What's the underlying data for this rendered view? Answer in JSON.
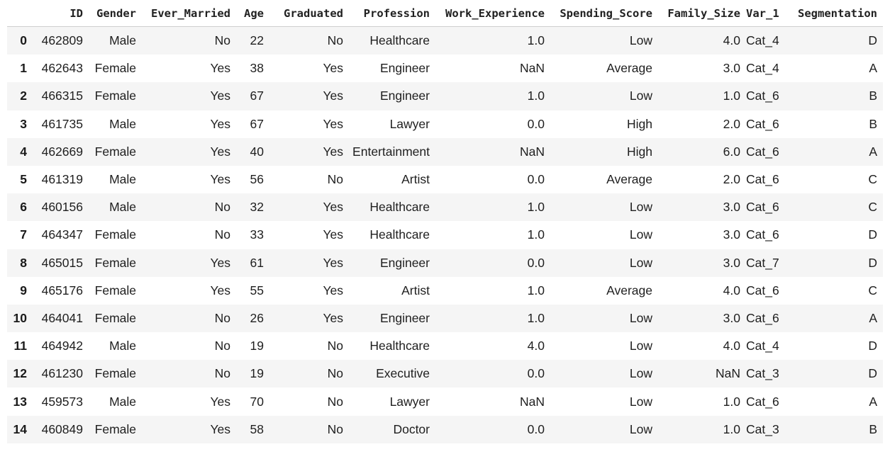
{
  "table": {
    "columns": [
      "",
      "ID",
      "Gender",
      "Ever_Married",
      "Age",
      "Graduated",
      "Profession",
      "Work_Experience",
      "Spending_Score",
      "Family_Size",
      "Var_1",
      "Segmentation"
    ],
    "rows": [
      [
        "0",
        "462809",
        "Male",
        "No",
        "22",
        "No",
        "Healthcare",
        "1.0",
        "Low",
        "4.0",
        "Cat_4",
        "D"
      ],
      [
        "1",
        "462643",
        "Female",
        "Yes",
        "38",
        "Yes",
        "Engineer",
        "NaN",
        "Average",
        "3.0",
        "Cat_4",
        "A"
      ],
      [
        "2",
        "466315",
        "Female",
        "Yes",
        "67",
        "Yes",
        "Engineer",
        "1.0",
        "Low",
        "1.0",
        "Cat_6",
        "B"
      ],
      [
        "3",
        "461735",
        "Male",
        "Yes",
        "67",
        "Yes",
        "Lawyer",
        "0.0",
        "High",
        "2.0",
        "Cat_6",
        "B"
      ],
      [
        "4",
        "462669",
        "Female",
        "Yes",
        "40",
        "Yes",
        "Entertainment",
        "NaN",
        "High",
        "6.0",
        "Cat_6",
        "A"
      ],
      [
        "5",
        "461319",
        "Male",
        "Yes",
        "56",
        "No",
        "Artist",
        "0.0",
        "Average",
        "2.0",
        "Cat_6",
        "C"
      ],
      [
        "6",
        "460156",
        "Male",
        "No",
        "32",
        "Yes",
        "Healthcare",
        "1.0",
        "Low",
        "3.0",
        "Cat_6",
        "C"
      ],
      [
        "7",
        "464347",
        "Female",
        "No",
        "33",
        "Yes",
        "Healthcare",
        "1.0",
        "Low",
        "3.0",
        "Cat_6",
        "D"
      ],
      [
        "8",
        "465015",
        "Female",
        "Yes",
        "61",
        "Yes",
        "Engineer",
        "0.0",
        "Low",
        "3.0",
        "Cat_7",
        "D"
      ],
      [
        "9",
        "465176",
        "Female",
        "Yes",
        "55",
        "Yes",
        "Artist",
        "1.0",
        "Average",
        "4.0",
        "Cat_6",
        "C"
      ],
      [
        "10",
        "464041",
        "Female",
        "No",
        "26",
        "Yes",
        "Engineer",
        "1.0",
        "Low",
        "3.0",
        "Cat_6",
        "A"
      ],
      [
        "11",
        "464942",
        "Male",
        "No",
        "19",
        "No",
        "Healthcare",
        "4.0",
        "Low",
        "4.0",
        "Cat_4",
        "D"
      ],
      [
        "12",
        "461230",
        "Female",
        "No",
        "19",
        "No",
        "Executive",
        "0.0",
        "Low",
        "NaN",
        "Cat_3",
        "D"
      ],
      [
        "13",
        "459573",
        "Male",
        "Yes",
        "70",
        "No",
        "Lawyer",
        "NaN",
        "Low",
        "1.0",
        "Cat_6",
        "A"
      ],
      [
        "14",
        "460849",
        "Female",
        "Yes",
        "58",
        "No",
        "Doctor",
        "0.0",
        "Low",
        "1.0",
        "Cat_3",
        "B"
      ]
    ]
  }
}
